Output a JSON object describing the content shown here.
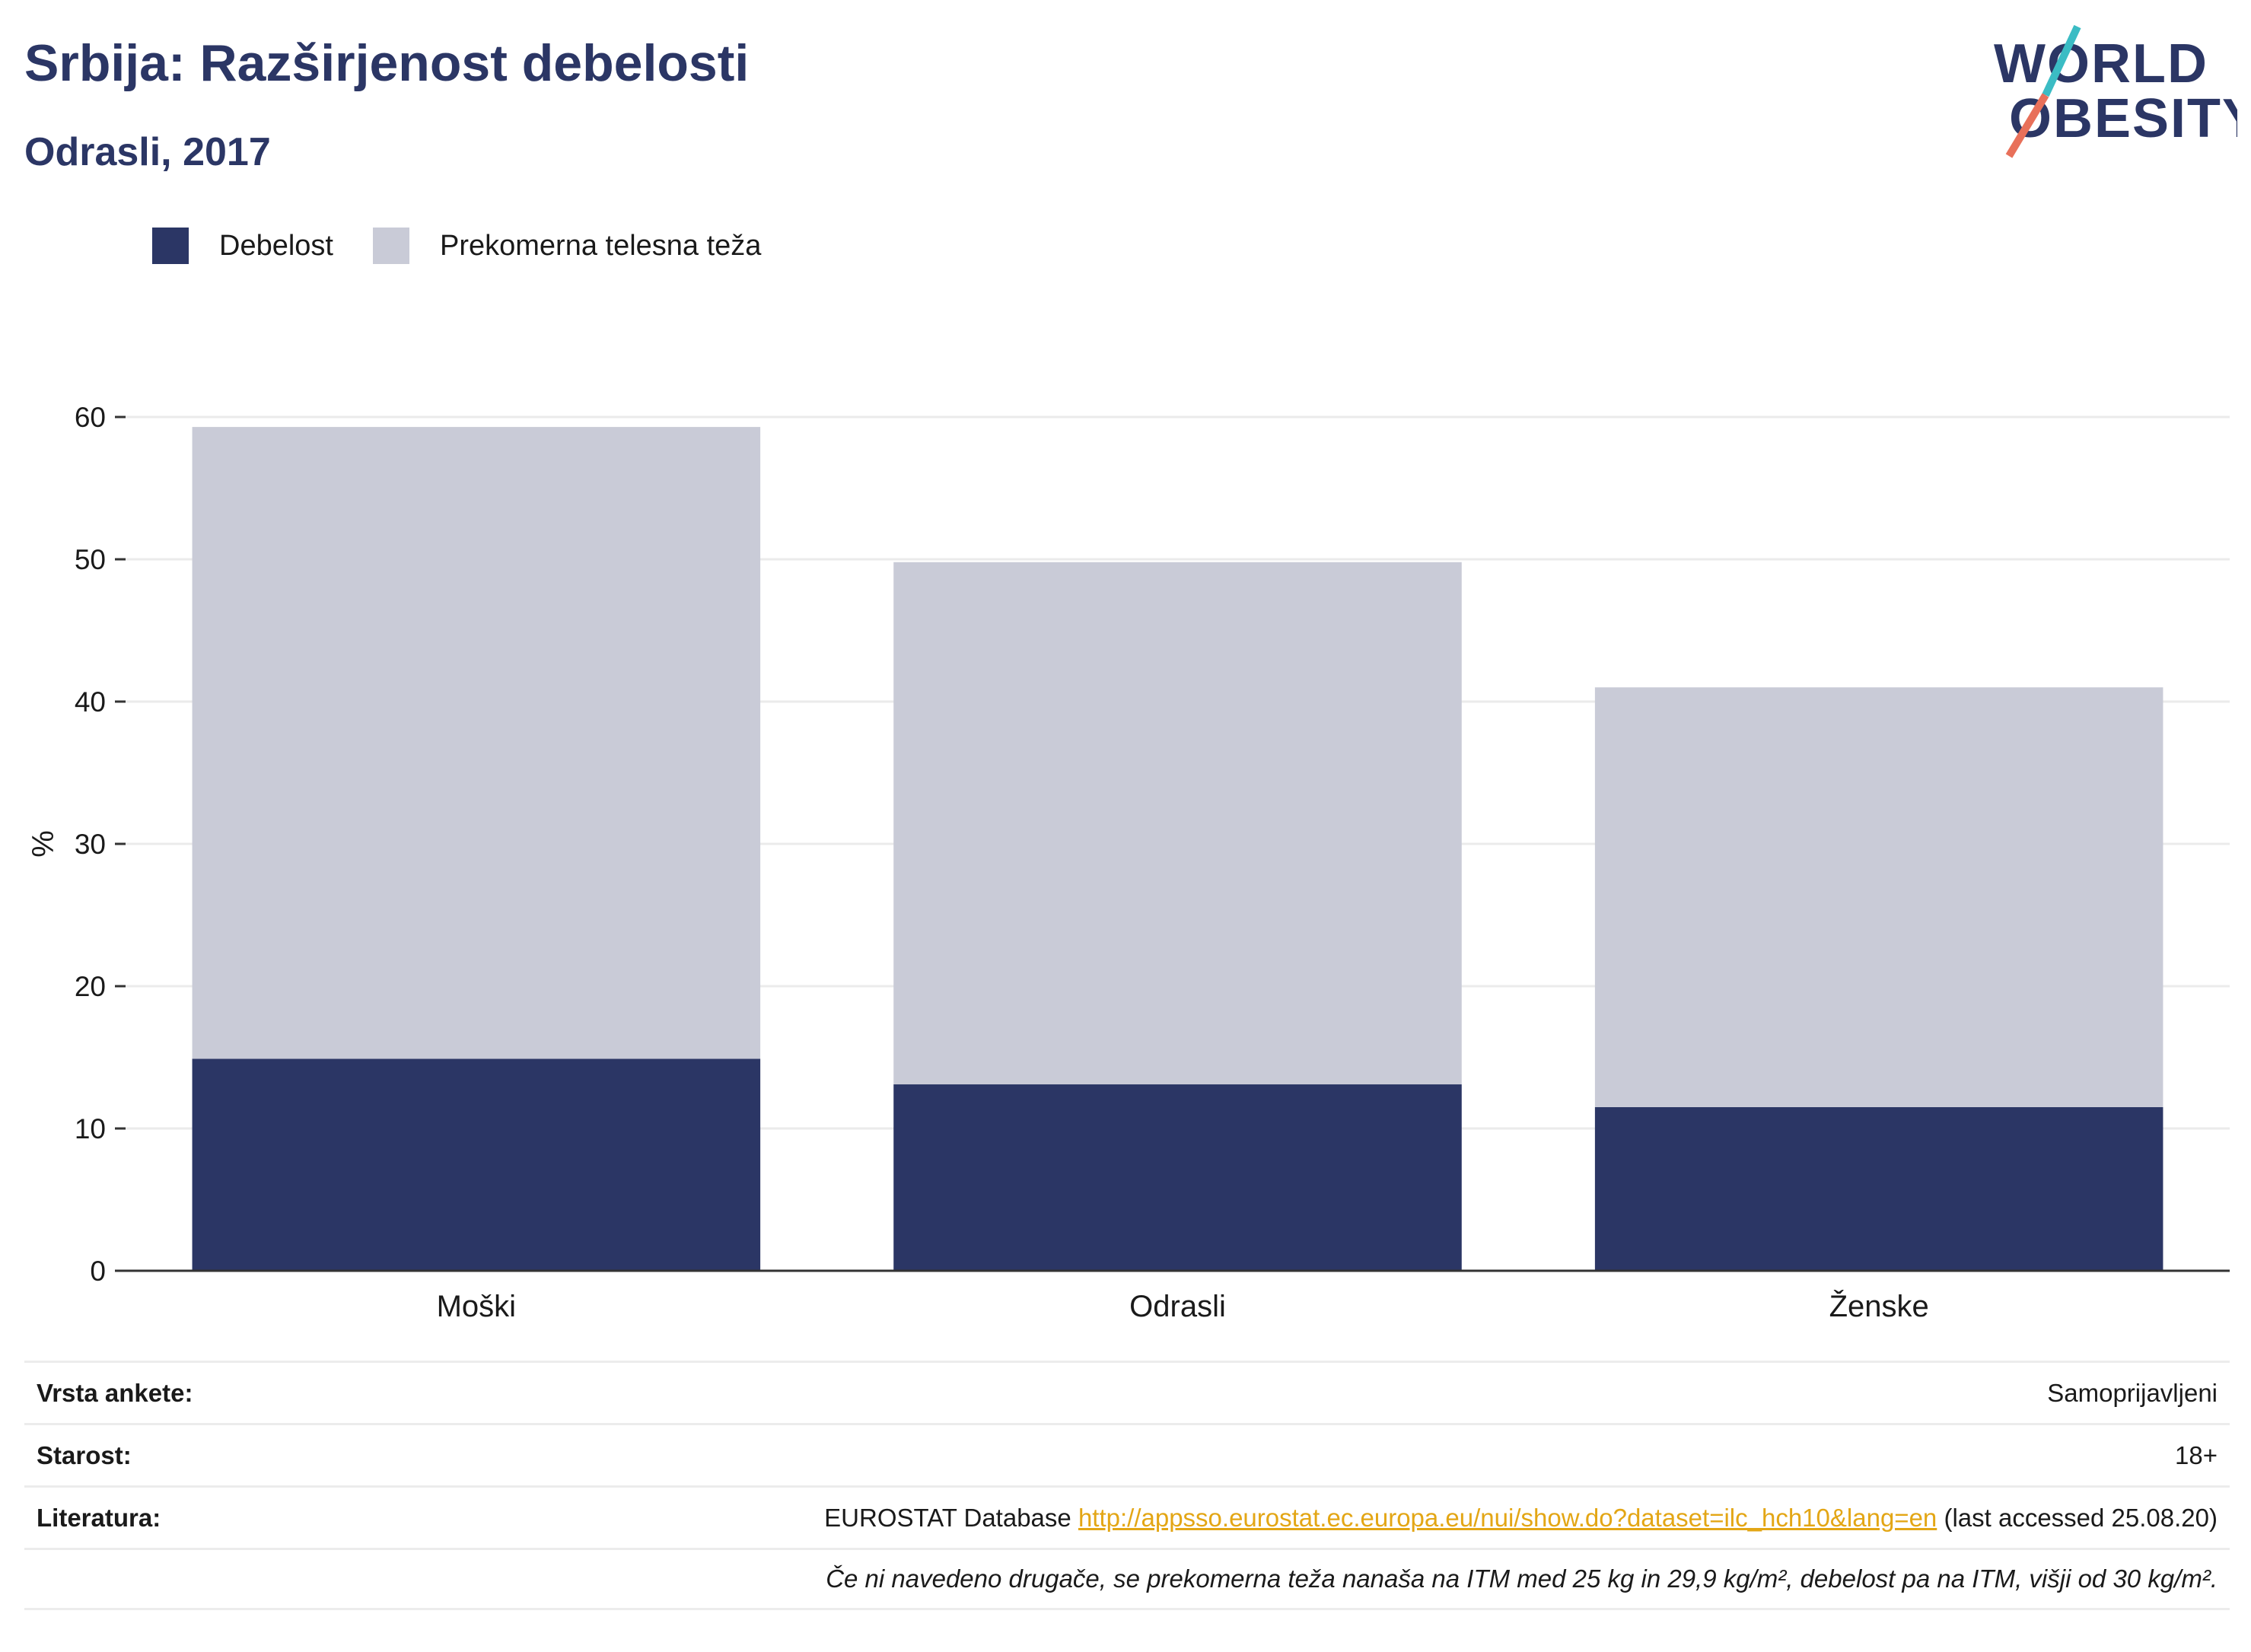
{
  "header": {
    "title": "Srbija: Razširjenost debelosti",
    "subtitle": "Odrasli, 2017"
  },
  "logo": {
    "line1": "WORLD",
    "line2": "OBESITY"
  },
  "legend": [
    {
      "label": "Debelost",
      "color": "#2b3665"
    },
    {
      "label": "Prekomerna telesna teža",
      "color": "#c9cbd7"
    }
  ],
  "chart_data": {
    "type": "bar",
    "stacked": true,
    "categories": [
      "Moški",
      "Odrasli",
      "Ženske"
    ],
    "series": [
      {
        "name": "Debelost",
        "values": [
          14.9,
          13.1,
          11.5
        ],
        "color": "#2b3665"
      },
      {
        "name": "Prekomerna telesna teža",
        "values": [
          44.4,
          36.7,
          29.5
        ],
        "color": "#c9cbd7"
      }
    ],
    "ylabel": "%",
    "ylim": [
      0,
      60
    ],
    "yticks": [
      0,
      10,
      20,
      30,
      40,
      50,
      60
    ],
    "grid": true,
    "legend_position": "top-left"
  },
  "info": {
    "survey_label": "Vrsta ankete:",
    "survey_value": "Samoprijavljeni",
    "age_label": "Starost:",
    "age_value": "18+",
    "lit_label": "Literatura:",
    "lit_prefix": "EUROSTAT Database",
    "lit_link": "http://appsso.eurostat.ec.europa.eu/nui/show.do?dataset=ilc_hch10&lang=en",
    "lit_suffix": "(last accessed 25.08.20)",
    "note": "Če ni navedeno drugače, se prekomerna teža nanaša na ITM med 25 kg in 29,9 kg/m², debelost pa na ITM, višji od 30 kg/m²."
  }
}
